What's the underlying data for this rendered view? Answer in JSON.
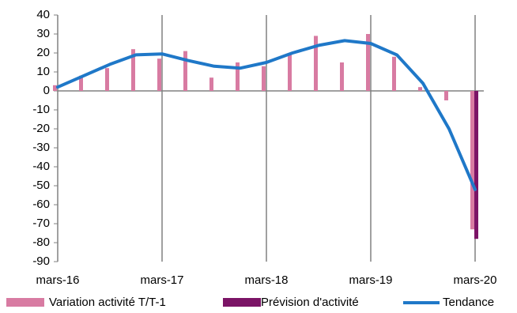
{
  "chart_data": {
    "type": "bar",
    "categories": [
      "mars-16",
      null,
      null,
      null,
      "mars-17",
      null,
      null,
      null,
      "mars-18",
      null,
      null,
      null,
      "mars-19",
      null,
      null,
      null,
      "mars-20"
    ],
    "series": [
      {
        "name": "Variation activité T/T-1",
        "type": "bar",
        "color": "#d87ba2",
        "values": [
          3,
          8,
          12,
          22,
          17,
          21,
          7,
          15,
          13,
          20,
          29,
          15,
          30,
          18,
          2,
          -5,
          -73
        ]
      },
      {
        "name": "Prévision d'activité",
        "type": "bar",
        "color": "#7b1466",
        "values": [
          null,
          null,
          null,
          null,
          null,
          null,
          null,
          null,
          null,
          null,
          null,
          null,
          null,
          null,
          null,
          null,
          -78
        ]
      },
      {
        "name": "Tendance",
        "type": "line",
        "color": "#1f78c8",
        "values": [
          2,
          8,
          14,
          19,
          19.5,
          16,
          13,
          12,
          15,
          20,
          24,
          26.5,
          25,
          19,
          4,
          -20,
          -52
        ]
      }
    ],
    "ylim": [
      -90,
      40
    ],
    "yticks": [
      -90,
      -80,
      -70,
      -60,
      -50,
      -40,
      -30,
      -20,
      -10,
      0,
      10,
      20,
      30,
      40
    ],
    "vertical_grid": true
  }
}
